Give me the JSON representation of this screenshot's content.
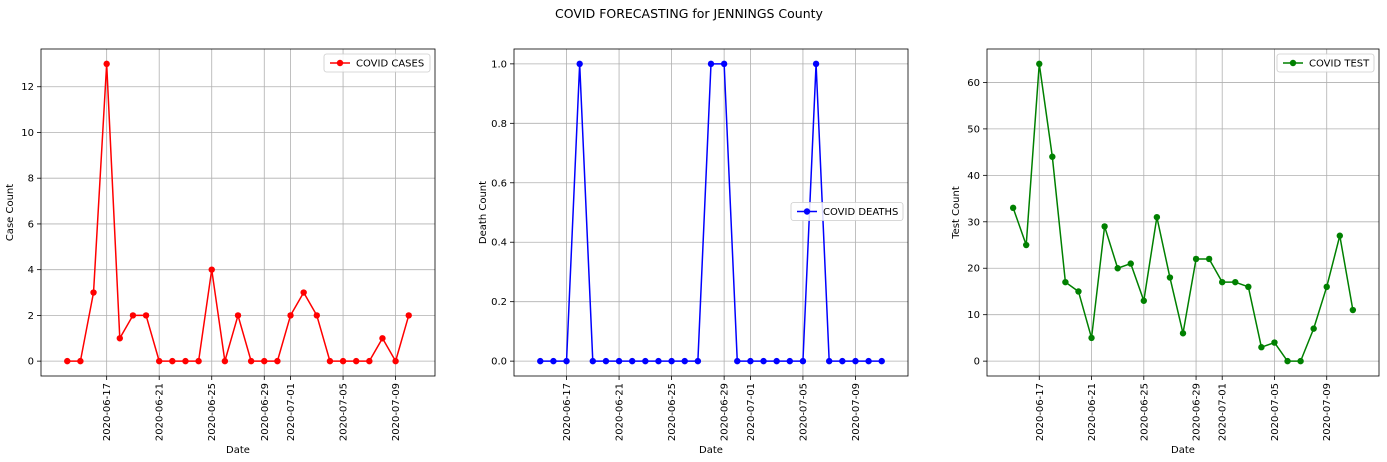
{
  "figure": {
    "title": "COVID FORECASTING for JENNINGS County"
  },
  "chart_data": [
    {
      "type": "line",
      "name": "cases",
      "xlabel": "Date",
      "ylabel": "Case Count",
      "x": [
        "2020-06-14",
        "2020-06-15",
        "2020-06-16",
        "2020-06-17",
        "2020-06-18",
        "2020-06-19",
        "2020-06-20",
        "2020-06-21",
        "2020-06-22",
        "2020-06-23",
        "2020-06-24",
        "2020-06-25",
        "2020-06-26",
        "2020-06-27",
        "2020-06-28",
        "2020-06-29",
        "2020-06-30",
        "2020-07-01",
        "2020-07-02",
        "2020-07-03",
        "2020-07-04",
        "2020-07-05",
        "2020-07-06",
        "2020-07-07",
        "2020-07-08",
        "2020-07-09",
        "2020-07-10",
        "2020-07-11"
      ],
      "series": [
        {
          "name": "COVID CASES",
          "color": "#ff0000",
          "values": [
            0,
            0,
            3,
            13,
            1,
            2,
            2,
            0,
            0,
            0,
            0,
            4,
            0,
            2,
            0,
            0,
            0,
            2,
            3,
            2,
            0,
            0,
            0,
            0,
            1,
            0,
            2,
            null
          ]
        }
      ],
      "xticks": [
        "2020-06-17",
        "2020-06-21",
        "2020-06-25",
        "2020-06-29",
        "2020-07-01",
        "2020-07-05",
        "2020-07-09"
      ],
      "xlim": [
        "2020-06-12",
        "2020-07-12"
      ],
      "yticks": [
        0,
        2,
        4,
        6,
        8,
        10,
        12
      ],
      "ylim": [
        -0.65,
        13.65
      ],
      "grid": true,
      "legend": "upper right"
    },
    {
      "type": "line",
      "name": "deaths",
      "xlabel": "Date",
      "ylabel": "Death Count",
      "x": [
        "2020-06-15",
        "2020-06-16",
        "2020-06-17",
        "2020-06-18",
        "2020-06-19",
        "2020-06-20",
        "2020-06-21",
        "2020-06-22",
        "2020-06-23",
        "2020-06-24",
        "2020-06-25",
        "2020-06-26",
        "2020-06-27",
        "2020-06-28",
        "2020-06-29",
        "2020-06-30",
        "2020-07-01",
        "2020-07-02",
        "2020-07-03",
        "2020-07-04",
        "2020-07-05",
        "2020-07-06",
        "2020-07-07",
        "2020-07-08",
        "2020-07-09",
        "2020-07-10",
        "2020-07-11"
      ],
      "series": [
        {
          "name": "COVID DEATHS",
          "color": "#0000ff",
          "values": [
            0,
            0,
            0,
            1,
            0,
            0,
            0,
            0,
            0,
            0,
            0,
            0,
            0,
            1,
            1,
            0,
            0,
            0,
            0,
            0,
            0,
            1,
            0,
            0,
            0,
            0,
            0
          ]
        }
      ],
      "xticks": [
        "2020-06-17",
        "2020-06-21",
        "2020-06-25",
        "2020-06-29",
        "2020-07-01",
        "2020-07-05",
        "2020-07-09"
      ],
      "xlim": [
        "2020-06-13",
        "2020-07-13"
      ],
      "yticks": [
        "0.0",
        "0.2",
        "0.4",
        "0.6",
        "0.8",
        "1.0"
      ],
      "ylim": [
        -0.05,
        1.05
      ],
      "grid": true,
      "legend": "center right"
    },
    {
      "type": "line",
      "name": "tests",
      "xlabel": "Date",
      "ylabel": "Test Count",
      "x": [
        "2020-06-15",
        "2020-06-16",
        "2020-06-17",
        "2020-06-18",
        "2020-06-19",
        "2020-06-20",
        "2020-06-21",
        "2020-06-22",
        "2020-06-23",
        "2020-06-24",
        "2020-06-25",
        "2020-06-26",
        "2020-06-27",
        "2020-06-28",
        "2020-06-29",
        "2020-06-30",
        "2020-07-01",
        "2020-07-02",
        "2020-07-03",
        "2020-07-04",
        "2020-07-05",
        "2020-07-06",
        "2020-07-07",
        "2020-07-08",
        "2020-07-09",
        "2020-07-10",
        "2020-07-11"
      ],
      "series": [
        {
          "name": "COVID TEST",
          "color": "#008000",
          "values": [
            33,
            25,
            64,
            44,
            17,
            15,
            5,
            29,
            20,
            21,
            13,
            31,
            18,
            6,
            22,
            22,
            17,
            17,
            16,
            3,
            4,
            0,
            0,
            7,
            16,
            27,
            11
          ]
        }
      ],
      "xticks": [
        "2020-06-17",
        "2020-06-21",
        "2020-06-25",
        "2020-06-29",
        "2020-07-01",
        "2020-07-05",
        "2020-07-09"
      ],
      "xlim": [
        "2020-06-13",
        "2020-07-13"
      ],
      "yticks": [
        0,
        10,
        20,
        30,
        40,
        50,
        60
      ],
      "ylim": [
        -3.2,
        67.2
      ],
      "grid": true,
      "legend": "upper right"
    }
  ]
}
